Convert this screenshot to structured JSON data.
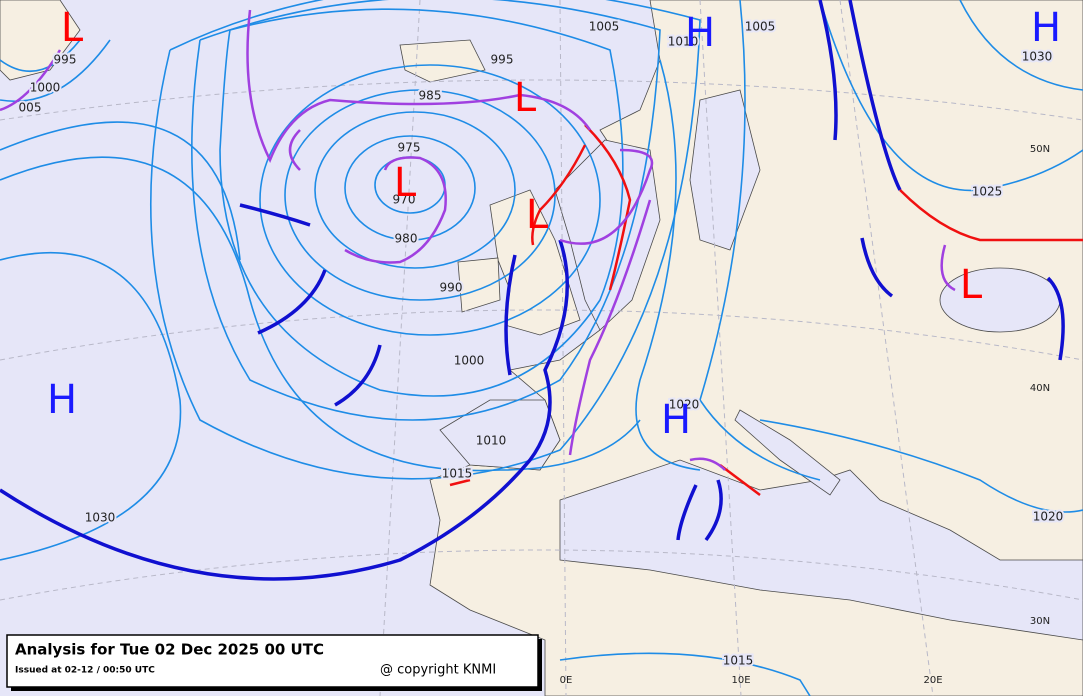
{
  "map": {
    "title": "Analysis for Tue 02 Dec 2025 00 UTC",
    "issued": "Issued at 02-12 / 00:50 UTC",
    "copyright": "@ copyright KNMI",
    "centers": [
      "L",
      "L",
      "L",
      "L",
      "L",
      "H",
      "H",
      "H",
      "H"
    ],
    "isobar_labels": [
      "1005",
      "1010",
      "1005",
      "1030",
      "995",
      "985",
      "975",
      "970",
      "980",
      "990",
      "1000",
      "1010",
      "1015",
      "1030",
      "1020",
      "1020",
      "1025",
      "1015",
      "1000",
      "995",
      "005"
    ],
    "graticule_labels": [
      "50N",
      "40N",
      "30N",
      "0E",
      "10E",
      "20E"
    ]
  }
}
